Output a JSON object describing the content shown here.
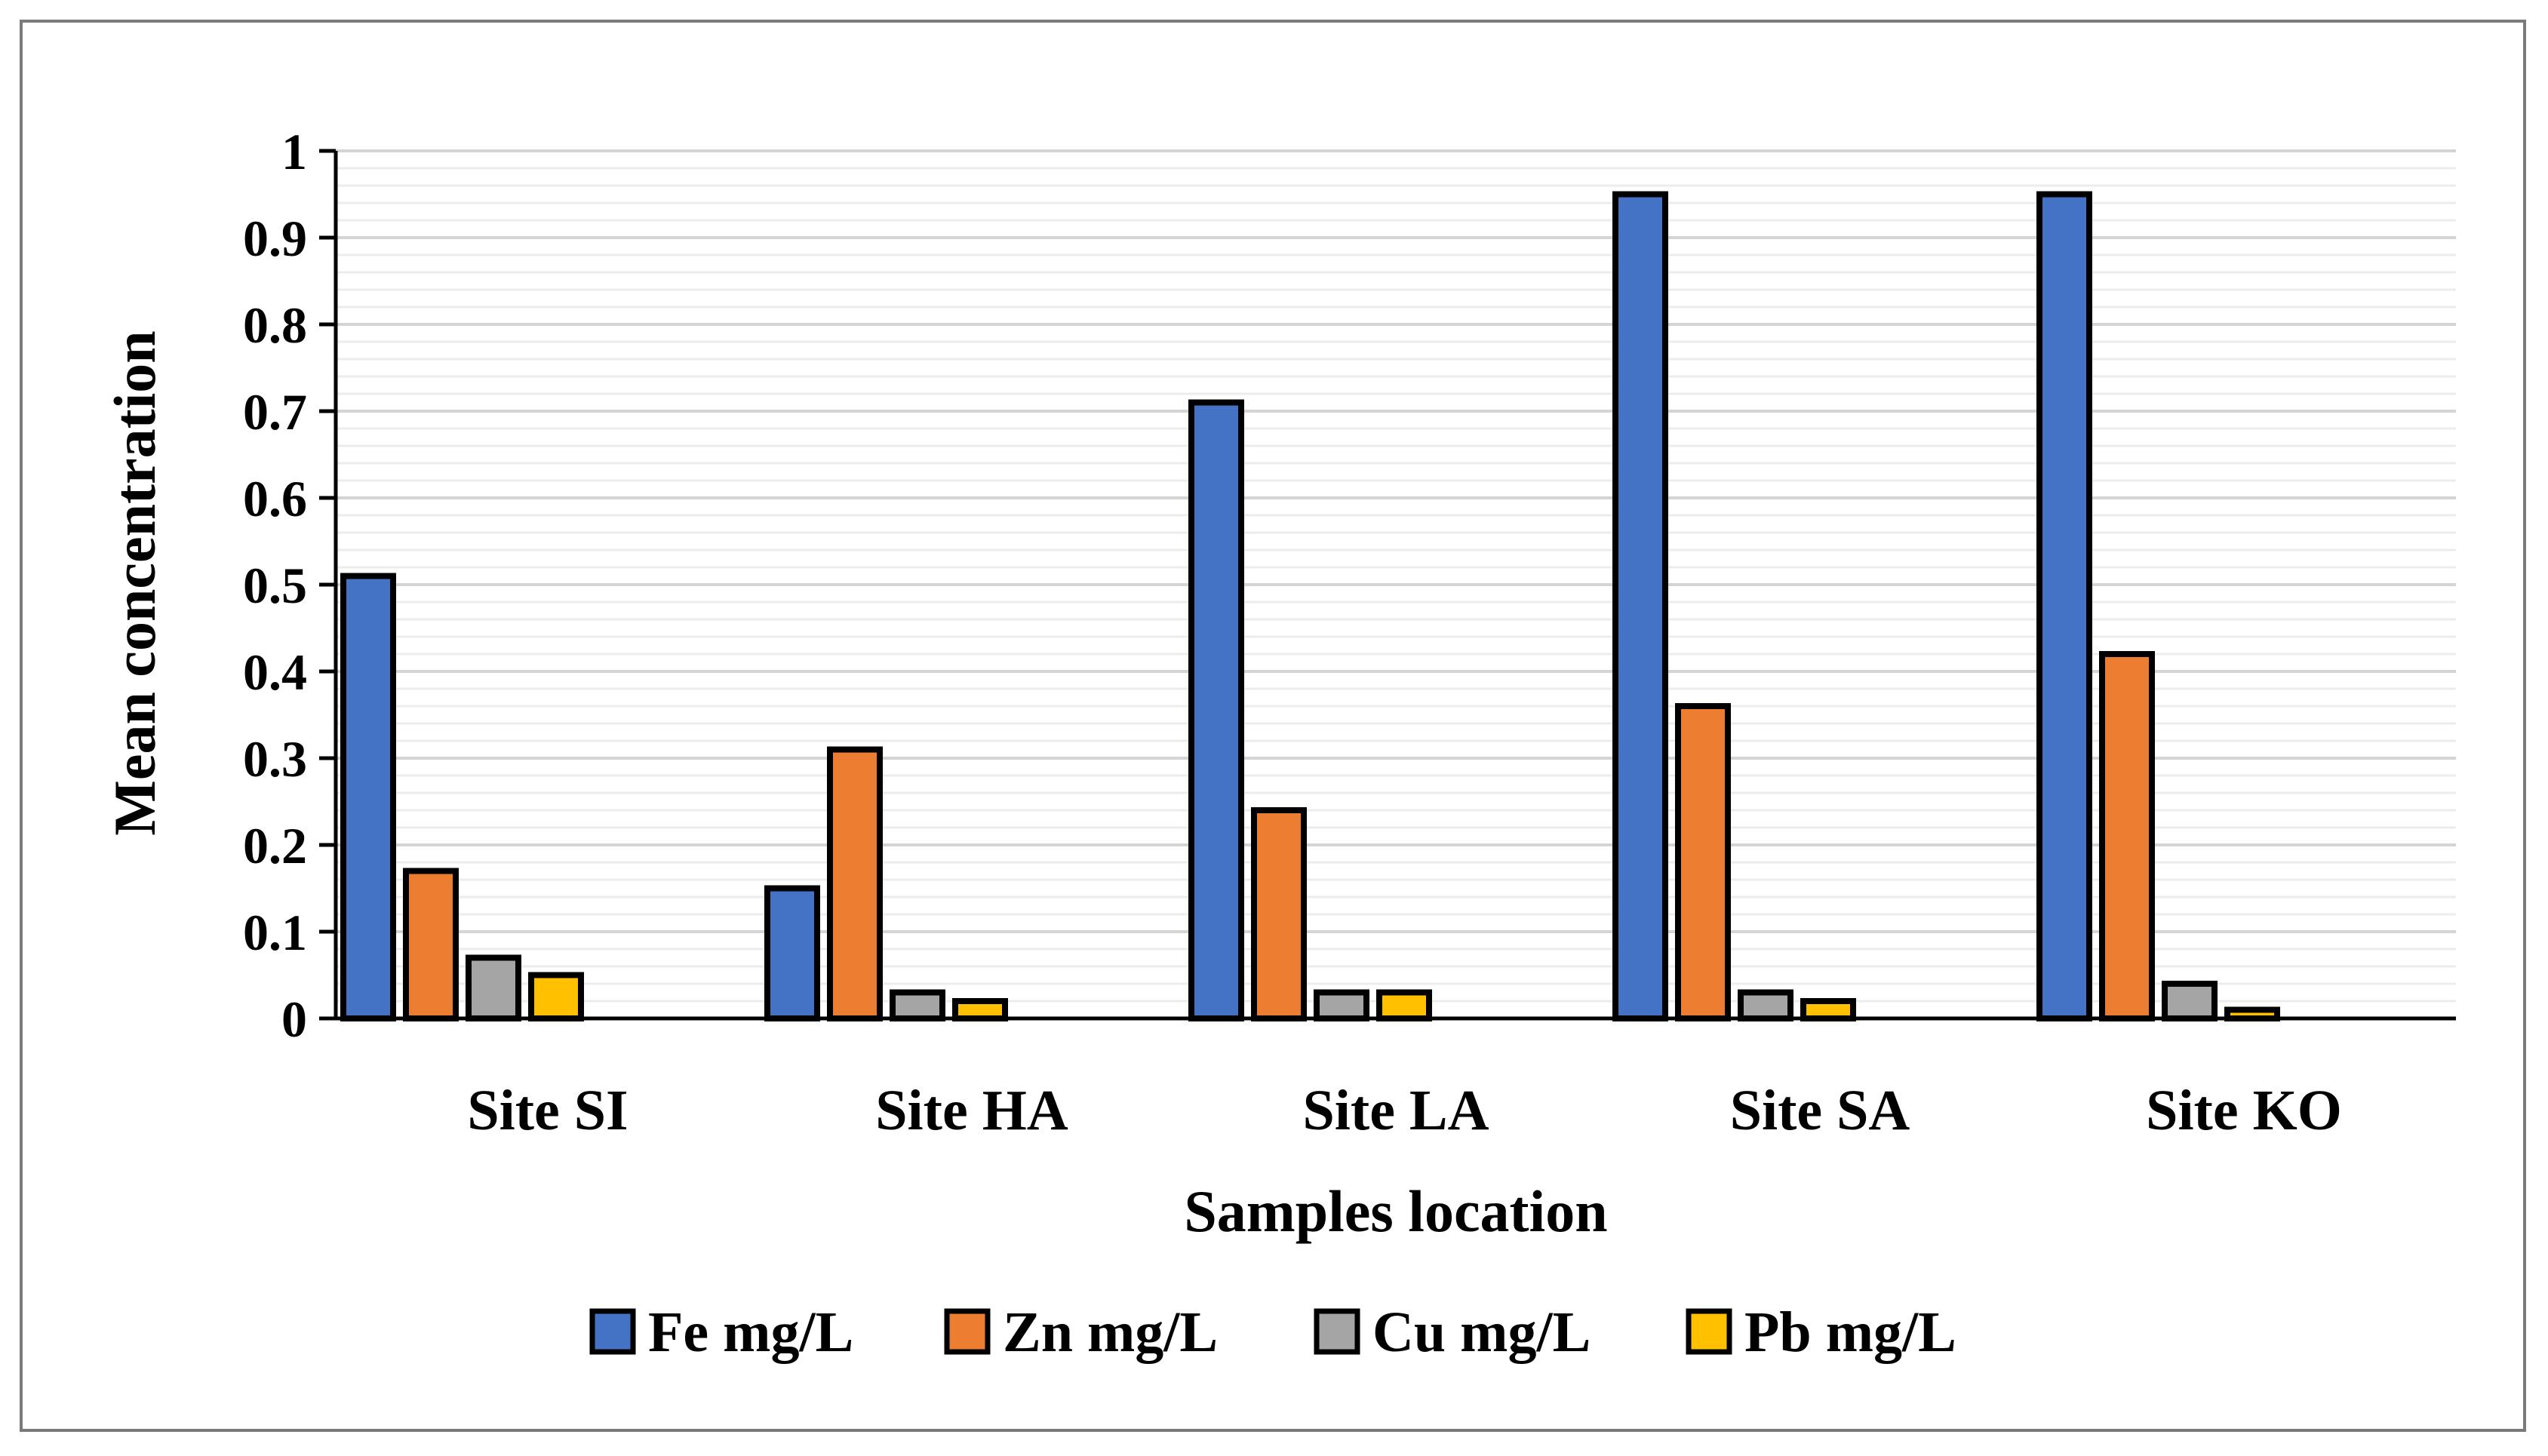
{
  "chart_data": {
    "type": "bar",
    "title": "",
    "xlabel": "Samples location",
    "ylabel": "Mean concentration",
    "categories": [
      "Site SI",
      "Site HA",
      "Site LA",
      "Site SA",
      "Site KO"
    ],
    "series": [
      {
        "name": "Fe mg/L",
        "color": "#4472C4",
        "values": [
          0.51,
          0.15,
          0.71,
          0.95,
          0.95
        ]
      },
      {
        "name": "Zn mg/L",
        "color": "#ED7D31",
        "values": [
          0.17,
          0.31,
          0.24,
          0.36,
          0.42
        ]
      },
      {
        "name": "Cu mg/L",
        "color": "#A5A5A5",
        "values": [
          0.07,
          0.03,
          0.03,
          0.03,
          0.04
        ]
      },
      {
        "name": "Pb mg/L",
        "color": "#FFC000",
        "values": [
          0.05,
          0.02,
          0.03,
          0.02,
          0.01
        ]
      }
    ],
    "ylim": [
      0,
      1
    ],
    "yticks": [
      "0",
      "0.1",
      "0.2",
      "0.3",
      "0.4",
      "0.5",
      "0.6",
      "0.7",
      "0.8",
      "0.9",
      "1"
    ],
    "grid": true,
    "legend_position": "bottom"
  }
}
